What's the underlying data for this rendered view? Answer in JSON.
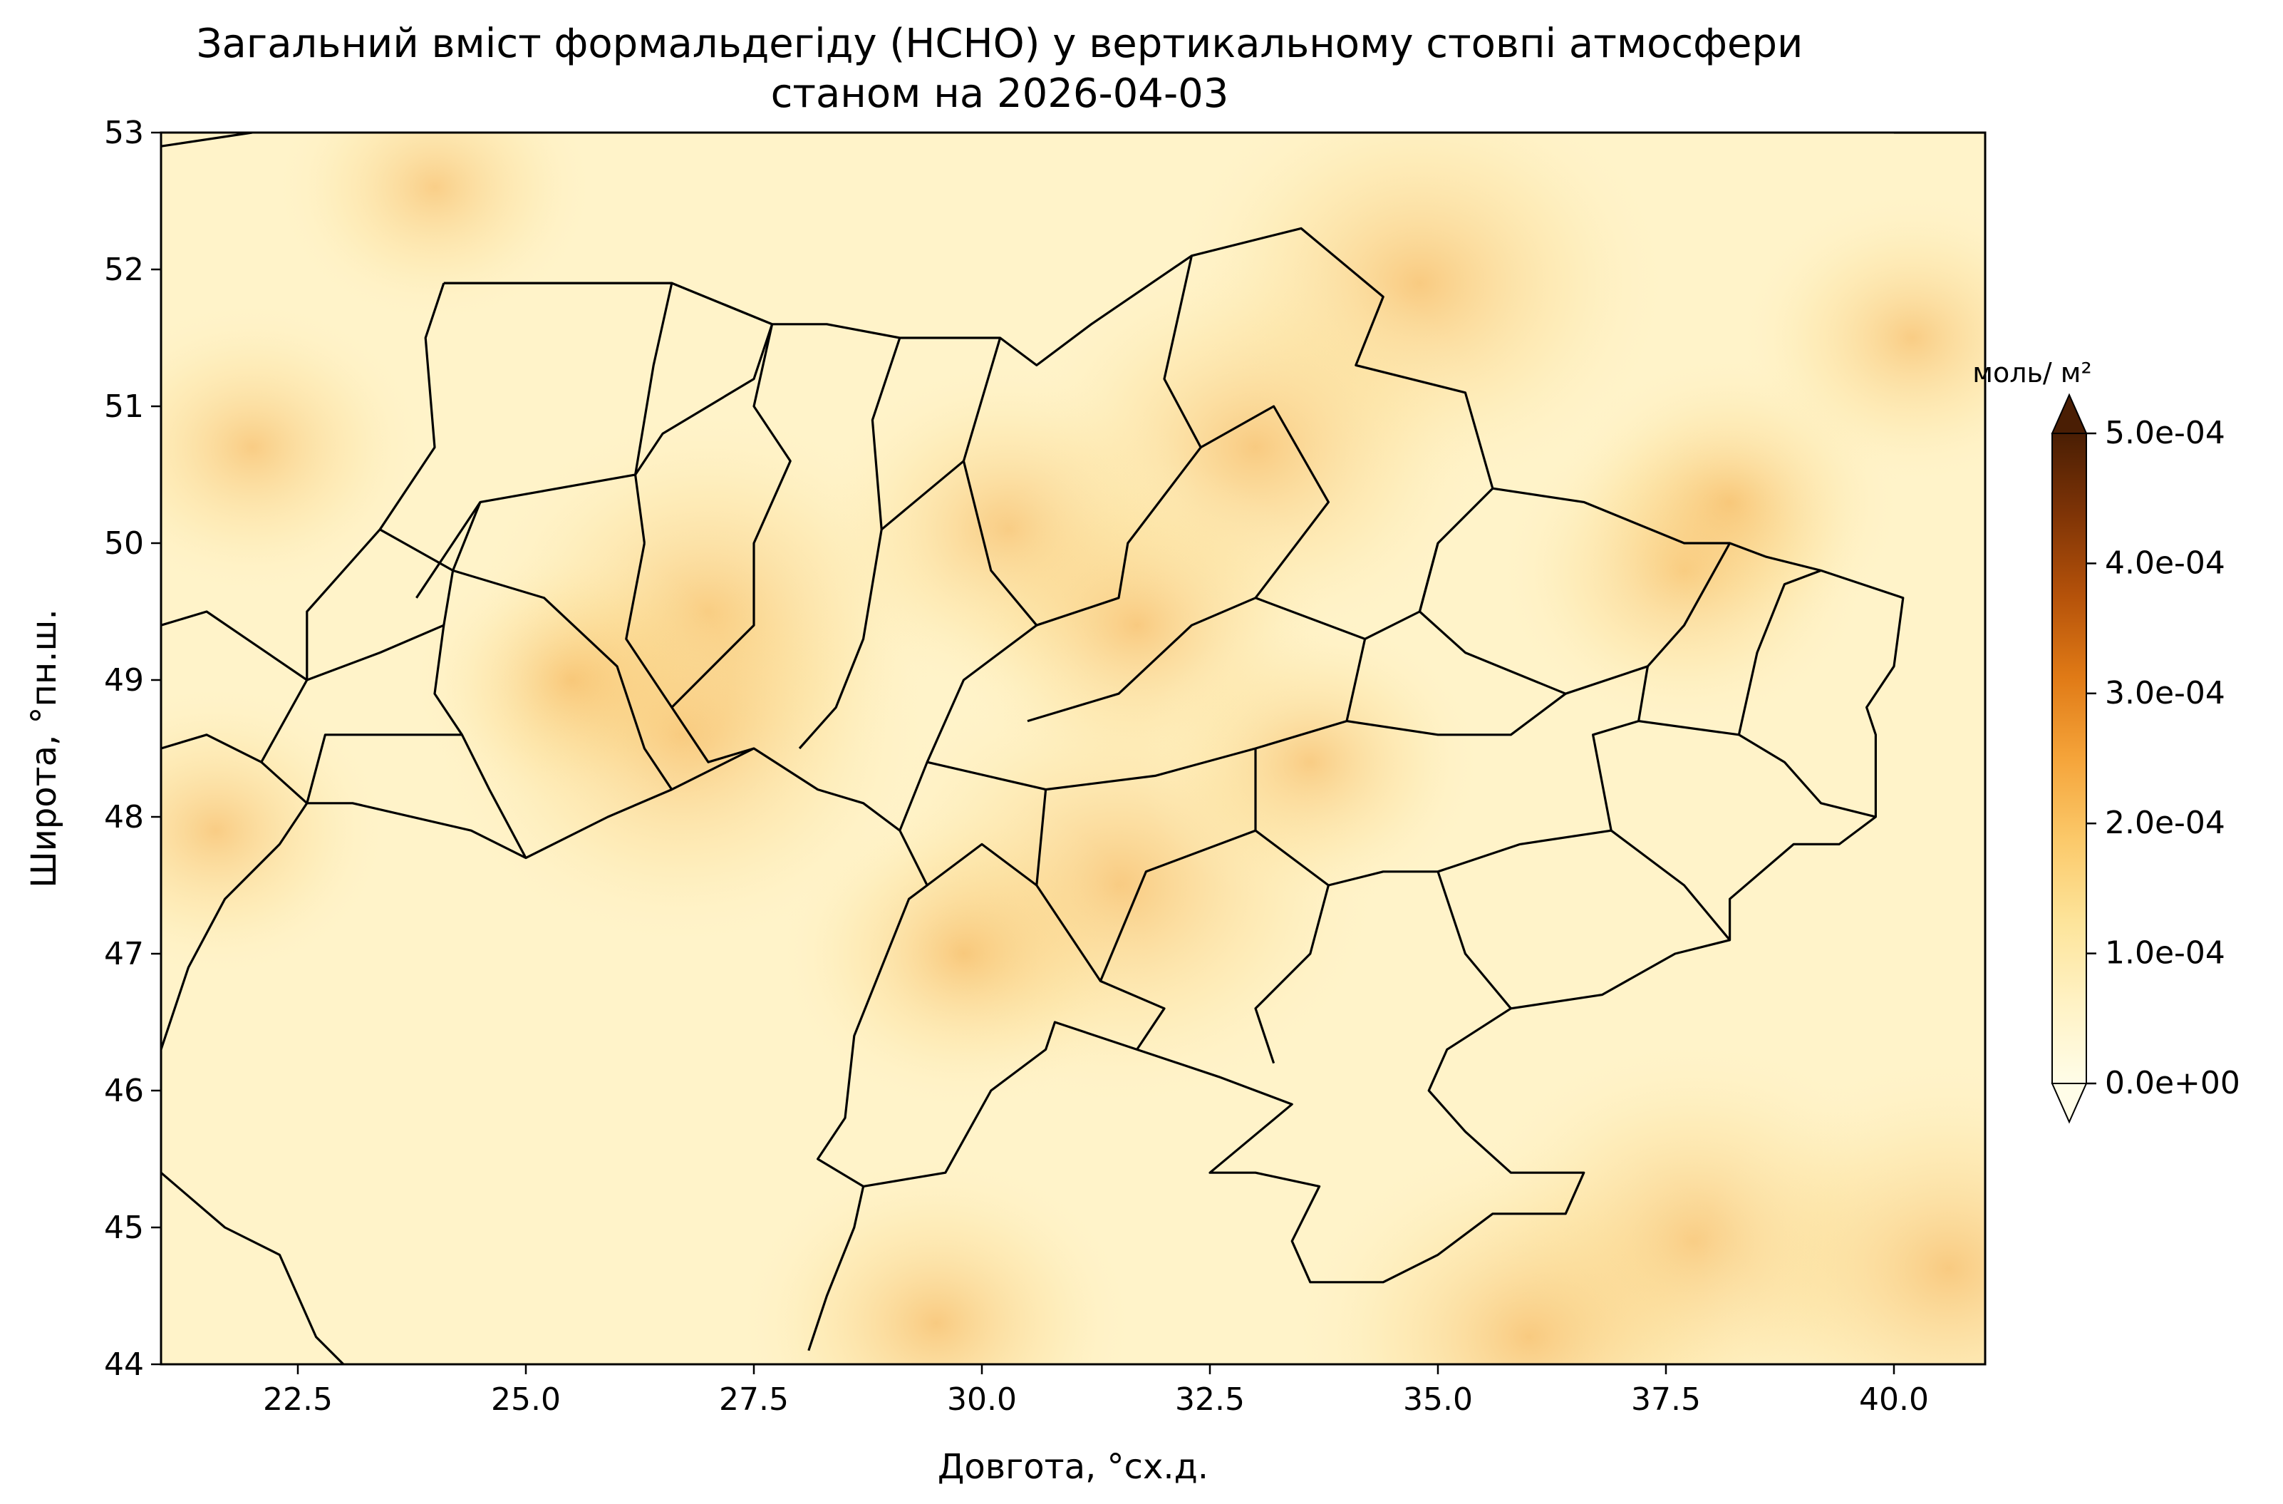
{
  "title_line1": "Загальний вміст формальдегіду (HCHO) у вертикальному стовпі атмосфери",
  "title_line2": "станом на 2026-04-03",
  "xaxis": {
    "label": "Довгота, °сх.д.",
    "range": [
      21.0,
      41.0
    ],
    "ticks": [
      {
        "value": 22.5,
        "label": "22.5"
      },
      {
        "value": 25.0,
        "label": "25.0"
      },
      {
        "value": 27.5,
        "label": "27.5"
      },
      {
        "value": 30.0,
        "label": "30.0"
      },
      {
        "value": 32.5,
        "label": "32.5"
      },
      {
        "value": 35.0,
        "label": "35.0"
      },
      {
        "value": 37.5,
        "label": "37.5"
      },
      {
        "value": 40.0,
        "label": "40.0"
      }
    ]
  },
  "yaxis": {
    "label": "Широта, °пн.ш.",
    "range": [
      44.0,
      53.0
    ],
    "ticks": [
      {
        "value": 44,
        "label": "44"
      },
      {
        "value": 45,
        "label": "45"
      },
      {
        "value": 46,
        "label": "46"
      },
      {
        "value": 47,
        "label": "47"
      },
      {
        "value": 48,
        "label": "48"
      },
      {
        "value": 49,
        "label": "49"
      },
      {
        "value": 50,
        "label": "50"
      },
      {
        "value": 51,
        "label": "51"
      },
      {
        "value": 52,
        "label": "52"
      },
      {
        "value": 53,
        "label": "53"
      }
    ]
  },
  "colorbar": {
    "unit": "моль/ м²",
    "min": 0,
    "max": 0.0005,
    "extend": "both",
    "ticks": [
      {
        "value": 0.0,
        "label": "0.0e+00"
      },
      {
        "value": 0.0001,
        "label": "1.0e-04"
      },
      {
        "value": 0.0002,
        "label": "2.0e-04"
      },
      {
        "value": 0.0003,
        "label": "3.0e-04"
      },
      {
        "value": 0.0004,
        "label": "4.0e-04"
      },
      {
        "value": 0.0005,
        "label": "5.0e-04"
      }
    ],
    "colors": [
      "#fffde8",
      "#fff2c4",
      "#fde49a",
      "#fbc96a",
      "#f5a43a",
      "#e07a16",
      "#b5520a",
      "#7f3406",
      "#4a1e04"
    ]
  },
  "hotspots": [
    {
      "lon": 27.0,
      "lat": 49.5,
      "value": 0.00015
    },
    {
      "lon": 26.7,
      "lat": 48.6,
      "value": 0.00016
    },
    {
      "lon": 31.5,
      "lat": 47.5,
      "value": 0.00017
    },
    {
      "lon": 34.8,
      "lat": 51.9,
      "value": 0.00016
    },
    {
      "lon": 33.0,
      "lat": 50.7,
      "value": 0.00015
    },
    {
      "lon": 30.3,
      "lat": 50.1,
      "value": 0.00012
    },
    {
      "lon": 31.7,
      "lat": 49.4,
      "value": 0.00012
    },
    {
      "lon": 22.0,
      "lat": 50.7,
      "value": 0.0001
    },
    {
      "lon": 21.6,
      "lat": 47.9,
      "value": 0.0001
    },
    {
      "lon": 37.8,
      "lat": 44.9,
      "value": 0.00015
    },
    {
      "lon": 40.6,
      "lat": 44.7,
      "value": 0.00016
    },
    {
      "lon": 36.0,
      "lat": 44.2,
      "value": 0.00015
    },
    {
      "lon": 29.5,
      "lat": 44.3,
      "value": 0.00012
    },
    {
      "lon": 33.6,
      "lat": 48.4,
      "value": 0.0001
    },
    {
      "lon": 37.7,
      "lat": 49.8,
      "value": 0.00011
    },
    {
      "lon": 38.2,
      "lat": 50.3,
      "value": 0.0001
    },
    {
      "lon": 29.8,
      "lat": 47.0,
      "value": 0.00011
    },
    {
      "lon": 40.2,
      "lat": 51.5,
      "value": 0.0001
    },
    {
      "lon": 24.0,
      "lat": 52.6,
      "value": 9e-05
    },
    {
      "lon": 25.5,
      "lat": 49.0,
      "value": 9e-05
    }
  ],
  "boundaries": {
    "ukraine": [
      [
        24.1,
        51.9
      ],
      [
        25.5,
        51.9
      ],
      [
        26.6,
        51.9
      ],
      [
        27.7,
        51.6
      ],
      [
        28.3,
        51.6
      ],
      [
        29.1,
        51.5
      ],
      [
        30.2,
        51.5
      ],
      [
        30.6,
        51.3
      ],
      [
        31.2,
        51.6
      ],
      [
        32.3,
        52.1
      ],
      [
        33.5,
        52.3
      ],
      [
        34.4,
        51.8
      ],
      [
        34.1,
        51.3
      ],
      [
        35.3,
        51.1
      ],
      [
        35.6,
        50.4
      ],
      [
        36.6,
        50.3
      ],
      [
        37.7,
        50.0
      ],
      [
        38.2,
        50.0
      ],
      [
        38.6,
        49.9
      ],
      [
        39.2,
        49.8
      ],
      [
        40.1,
        49.6
      ],
      [
        40.0,
        49.1
      ],
      [
        39.7,
        48.8
      ],
      [
        39.8,
        48.6
      ],
      [
        39.8,
        48.0
      ],
      [
        39.4,
        47.8
      ],
      [
        38.9,
        47.8
      ],
      [
        38.2,
        47.4
      ],
      [
        38.2,
        47.1
      ],
      [
        37.6,
        47.0
      ],
      [
        36.8,
        46.7
      ],
      [
        35.8,
        46.6
      ],
      [
        35.1,
        46.3
      ],
      [
        34.9,
        46.0
      ],
      [
        35.3,
        45.7
      ],
      [
        35.8,
        45.4
      ],
      [
        36.6,
        45.4
      ],
      [
        36.4,
        45.1
      ],
      [
        35.6,
        45.1
      ],
      [
        35.0,
        44.8
      ],
      [
        34.4,
        44.6
      ],
      [
        33.6,
        44.6
      ],
      [
        33.4,
        44.9
      ],
      [
        33.7,
        45.3
      ],
      [
        33.0,
        45.4
      ],
      [
        32.5,
        45.4
      ],
      [
        33.4,
        45.9
      ],
      [
        32.6,
        46.1
      ],
      [
        31.7,
        46.3
      ],
      [
        30.8,
        46.5
      ],
      [
        30.7,
        46.3
      ],
      [
        30.1,
        46.0
      ],
      [
        29.6,
        45.4
      ],
      [
        28.7,
        45.3
      ],
      [
        28.2,
        45.5
      ],
      [
        28.5,
        45.8
      ],
      [
        28.6,
        46.4
      ],
      [
        28.9,
        46.9
      ],
      [
        29.2,
        47.4
      ],
      [
        29.4,
        47.5
      ],
      [
        29.1,
        47.9
      ],
      [
        28.7,
        48.1
      ],
      [
        28.2,
        48.2
      ],
      [
        27.5,
        48.5
      ],
      [
        26.6,
        48.2
      ],
      [
        25.9,
        48.0
      ],
      [
        25.0,
        47.7
      ],
      [
        24.4,
        47.9
      ],
      [
        23.1,
        48.1
      ],
      [
        22.6,
        48.1
      ],
      [
        22.1,
        48.4
      ],
      [
        22.6,
        49.0
      ],
      [
        22.6,
        49.5
      ],
      [
        23.4,
        50.1
      ],
      [
        24.0,
        50.7
      ],
      [
        23.9,
        51.5
      ],
      [
        24.1,
        51.9
      ]
    ],
    "regions": [
      [
        [
          24.1,
          51.9
        ],
        [
          26.6,
          51.9
        ],
        [
          26.4,
          51.3
        ],
        [
          26.2,
          50.5
        ],
        [
          24.5,
          50.3
        ],
        [
          23.8,
          49.6
        ]
      ],
      [
        [
          26.6,
          51.9
        ],
        [
          27.7,
          51.6
        ],
        [
          27.5,
          51.2
        ],
        [
          26.5,
          50.8
        ],
        [
          26.2,
          50.5
        ],
        [
          26.3,
          50.0
        ]
      ],
      [
        [
          24.5,
          50.3
        ],
        [
          24.2,
          49.8
        ],
        [
          24.1,
          49.4
        ],
        [
          24.0,
          48.9
        ],
        [
          24.3,
          48.6
        ],
        [
          24.6,
          48.2
        ],
        [
          25.0,
          47.7
        ]
      ],
      [
        [
          23.4,
          50.1
        ],
        [
          24.2,
          49.8
        ],
        [
          25.2,
          49.6
        ],
        [
          26.0,
          49.1
        ],
        [
          26.3,
          48.5
        ],
        [
          26.6,
          48.2
        ]
      ],
      [
        [
          24.1,
          49.4
        ],
        [
          23.4,
          49.2
        ],
        [
          22.6,
          49.0
        ]
      ],
      [
        [
          24.3,
          48.6
        ],
        [
          23.5,
          48.6
        ],
        [
          22.8,
          48.6
        ],
        [
          22.6,
          48.1
        ]
      ],
      [
        [
          26.3,
          50.0
        ],
        [
          26.1,
          49.3
        ],
        [
          26.6,
          48.8
        ],
        [
          27.0,
          48.4
        ],
        [
          27.5,
          48.5
        ]
      ],
      [
        [
          27.7,
          51.6
        ],
        [
          27.5,
          51.0
        ],
        [
          27.9,
          50.6
        ],
        [
          27.5,
          50.0
        ],
        [
          27.5,
          49.4
        ],
        [
          26.6,
          48.8
        ]
      ],
      [
        [
          29.1,
          51.5
        ],
        [
          28.8,
          50.9
        ],
        [
          28.9,
          50.1
        ],
        [
          28.7,
          49.3
        ],
        [
          28.4,
          48.8
        ],
        [
          28.0,
          48.5
        ]
      ],
      [
        [
          30.2,
          51.5
        ],
        [
          29.8,
          50.6
        ],
        [
          30.1,
          49.8
        ],
        [
          30.6,
          49.4
        ],
        [
          31.5,
          49.6
        ],
        [
          31.6,
          50.0
        ],
        [
          32.4,
          50.7
        ],
        [
          32.0,
          51.2
        ],
        [
          32.3,
          52.1
        ]
      ],
      [
        [
          29.8,
          50.6
        ],
        [
          28.9,
          50.1
        ]
      ],
      [
        [
          30.6,
          49.4
        ],
        [
          29.8,
          49.0
        ],
        [
          29.4,
          48.4
        ],
        [
          29.1,
          47.9
        ]
      ],
      [
        [
          32.4,
          50.7
        ],
        [
          33.2,
          51.0
        ],
        [
          33.8,
          50.3
        ],
        [
          33.0,
          49.6
        ],
        [
          32.3,
          49.4
        ],
        [
          31.5,
          48.9
        ],
        [
          30.5,
          48.7
        ]
      ],
      [
        [
          33.0,
          49.6
        ],
        [
          34.2,
          49.3
        ],
        [
          34.8,
          49.5
        ],
        [
          35.0,
          50.0
        ],
        [
          35.6,
          50.4
        ]
      ],
      [
        [
          35.0,
          50.0
        ],
        [
          34.8,
          49.5
        ],
        [
          35.3,
          49.2
        ],
        [
          36.4,
          48.9
        ],
        [
          37.3,
          49.1
        ],
        [
          37.7,
          49.4
        ],
        [
          38.2,
          50.0
        ]
      ],
      [
        [
          37.3,
          49.1
        ],
        [
          37.2,
          48.7
        ],
        [
          36.7,
          48.6
        ],
        [
          36.9,
          47.9
        ],
        [
          37.7,
          47.5
        ],
        [
          38.2,
          47.1
        ]
      ],
      [
        [
          37.2,
          48.7
        ],
        [
          38.3,
          48.6
        ],
        [
          38.8,
          48.4
        ],
        [
          39.2,
          48.1
        ],
        [
          39.8,
          48.0
        ]
      ],
      [
        [
          38.3,
          48.6
        ],
        [
          38.5,
          49.2
        ],
        [
          38.8,
          49.7
        ],
        [
          39.2,
          49.8
        ]
      ],
      [
        [
          34.2,
          49.3
        ],
        [
          34.0,
          48.7
        ],
        [
          33.0,
          48.5
        ],
        [
          31.9,
          48.3
        ],
        [
          30.7,
          48.2
        ],
        [
          29.4,
          48.4
        ]
      ],
      [
        [
          34.0,
          48.7
        ],
        [
          35.0,
          48.6
        ],
        [
          35.8,
          48.6
        ],
        [
          36.4,
          48.9
        ]
      ],
      [
        [
          36.9,
          47.9
        ],
        [
          35.9,
          47.8
        ],
        [
          35.0,
          47.6
        ],
        [
          34.4,
          47.6
        ],
        [
          33.8,
          47.5
        ]
      ],
      [
        [
          35.0,
          47.6
        ],
        [
          35.3,
          47.0
        ],
        [
          35.8,
          46.6
        ]
      ],
      [
        [
          33.0,
          48.5
        ],
        [
          33.0,
          47.9
        ],
        [
          33.8,
          47.5
        ],
        [
          33.6,
          47.0
        ],
        [
          33.0,
          46.6
        ],
        [
          33.2,
          46.2
        ]
      ],
      [
        [
          30.7,
          48.2
        ],
        [
          30.6,
          47.5
        ],
        [
          31.3,
          46.8
        ],
        [
          32.0,
          46.6
        ],
        [
          31.7,
          46.3
        ]
      ],
      [
        [
          30.6,
          47.5
        ],
        [
          30.0,
          47.8
        ],
        [
          29.4,
          47.5
        ]
      ],
      [
        [
          31.3,
          46.8
        ],
        [
          31.8,
          47.6
        ],
        [
          33.0,
          47.9
        ]
      ]
    ],
    "coast_west": [
      [
        21.0,
        45.4
      ],
      [
        21.7,
        45.0
      ],
      [
        22.3,
        44.8
      ],
      [
        22.5,
        44.5
      ],
      [
        22.7,
        44.2
      ],
      [
        23.0,
        44.0
      ]
    ],
    "border_romania": [
      [
        22.6,
        48.1
      ],
      [
        22.3,
        47.8
      ],
      [
        21.7,
        47.4
      ],
      [
        21.3,
        46.9
      ],
      [
        21.0,
        46.3
      ]
    ],
    "border_hungary": [
      [
        21.0,
        48.5
      ],
      [
        21.5,
        48.6
      ],
      [
        22.1,
        48.4
      ]
    ],
    "border_slovakia": [
      [
        21.0,
        49.4
      ],
      [
        21.5,
        49.5
      ],
      [
        22.6,
        49.0
      ]
    ],
    "border_moldova_river": [
      [
        28.1,
        44.1
      ],
      [
        28.3,
        44.5
      ],
      [
        28.6,
        45.0
      ],
      [
        28.7,
        45.3
      ]
    ],
    "top_border": [
      [
        21.0,
        52.9
      ],
      [
        22.0,
        53.0
      ]
    ],
    "top_border_right": [
      [
        40.0,
        53.0
      ],
      [
        41.0,
        53.0
      ]
    ]
  }
}
